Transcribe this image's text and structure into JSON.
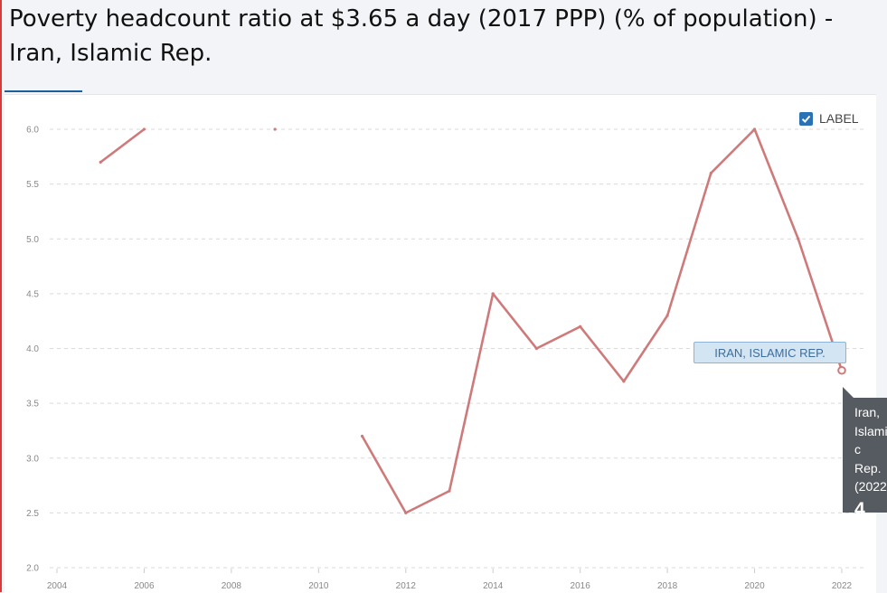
{
  "header": {
    "title": "Poverty headcount ratio at $3.65 a day (2017 PPP) (% of population) - Iran, Islamic Rep."
  },
  "label_toggle": {
    "checked": true,
    "label": "LABEL"
  },
  "series_tag": {
    "label": "IRAN, ISLAMIC REP."
  },
  "tooltip": {
    "country": "Iran, Islamic Rep.",
    "year_text": "(2022",
    "value": "4"
  },
  "colors": {
    "line": "#cf7a7a",
    "grid": "#d9d9d9",
    "accent": "#2a72b5"
  },
  "chart_data": {
    "type": "line",
    "title": "Poverty headcount ratio at $3.65 a day (2017 PPP) (% of population) - Iran, Islamic Rep.",
    "xlabel": "",
    "ylabel": "",
    "xlim": [
      2004,
      2022
    ],
    "ylim": [
      2.0,
      6.0
    ],
    "x_ticks": [
      2004,
      2006,
      2008,
      2010,
      2012,
      2014,
      2016,
      2018,
      2020,
      2022
    ],
    "y_ticks": [
      "2.0",
      "2.5",
      "3.0",
      "3.5",
      "4.0",
      "4.5",
      "5.0",
      "5.5",
      "6.0"
    ],
    "grid": true,
    "legend": "none",
    "series": [
      {
        "name": "Iran, Islamic Rep.",
        "points": [
          {
            "x": 2005,
            "y": 5.7
          },
          {
            "x": 2006,
            "y": 6.0
          },
          {
            "x": 2007,
            "y": null
          },
          {
            "x": 2008,
            "y": null
          },
          {
            "x": 2009,
            "y": 6.0
          },
          {
            "x": 2010,
            "y": null
          },
          {
            "x": 2011,
            "y": 3.2
          },
          {
            "x": 2012,
            "y": 2.5
          },
          {
            "x": 2013,
            "y": 2.7
          },
          {
            "x": 2014,
            "y": 4.5
          },
          {
            "x": 2015,
            "y": 4.0
          },
          {
            "x": 2016,
            "y": 4.2
          },
          {
            "x": 2017,
            "y": 3.7
          },
          {
            "x": 2018,
            "y": 4.3
          },
          {
            "x": 2019,
            "y": 5.6
          },
          {
            "x": 2020,
            "y": 6.0
          },
          {
            "x": 2021,
            "y": 5.0
          },
          {
            "x": 2022,
            "y": 3.8
          }
        ],
        "highlight_x": 2022
      }
    ]
  }
}
